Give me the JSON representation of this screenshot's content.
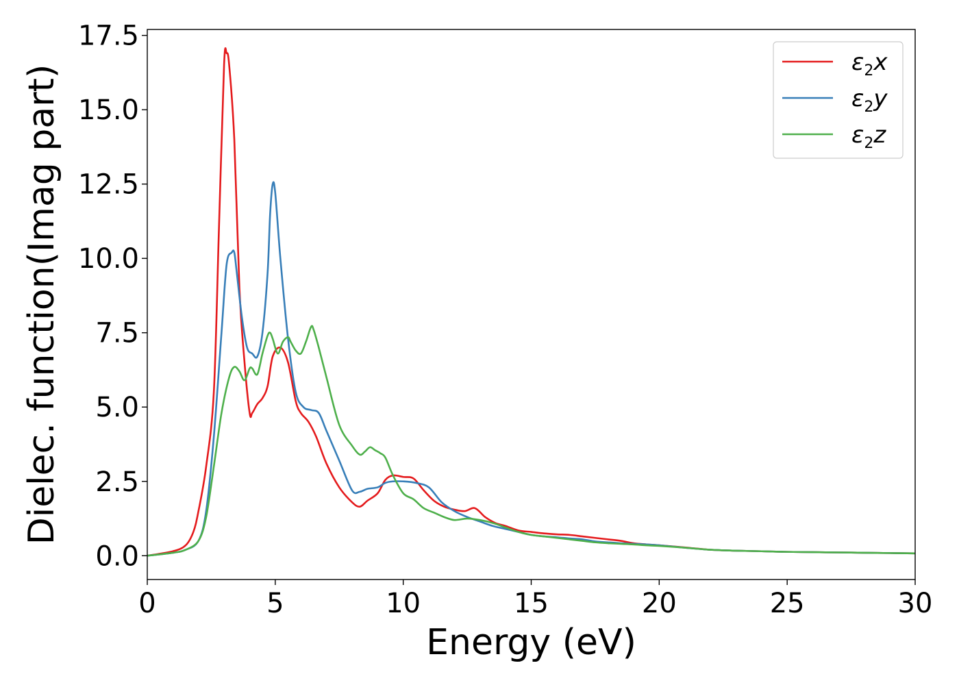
{
  "chart_data": {
    "type": "line",
    "title": "",
    "xlabel": "Energy (eV)",
    "ylabel": "Dielec. function(Imag part)",
    "xlim": [
      0,
      30
    ],
    "ylim": [
      -0.8,
      17.7
    ],
    "xticks": [
      0,
      5,
      10,
      15,
      20,
      25,
      30
    ],
    "xtick_labels": [
      "0",
      "5",
      "10",
      "15",
      "20",
      "25",
      "30"
    ],
    "yticks": [
      0,
      2.5,
      5,
      7.5,
      10,
      12.5,
      15,
      17.5
    ],
    "ytick_labels": [
      "0.0",
      "2.5",
      "5.0",
      "7.5",
      "10.0",
      "12.5",
      "15.0",
      "17.5"
    ],
    "grid": false,
    "legend_position": "top-right",
    "series": [
      {
        "name": "ε2x",
        "symbol": "ε",
        "sub": "2",
        "axis": "x",
        "color": "#e41a1c",
        "x": [
          0,
          1,
          1.5,
          1.8,
          2.0,
          2.3,
          2.6,
          2.8,
          3.0,
          3.1,
          3.2,
          3.4,
          3.6,
          3.8,
          4.0,
          4.1,
          4.3,
          4.5,
          4.7,
          4.9,
          5.2,
          5.5,
          5.8,
          6.0,
          6.3,
          6.6,
          7.0,
          7.5,
          8.0,
          8.3,
          8.6,
          9.0,
          9.3,
          9.6,
          10.0,
          10.4,
          10.8,
          11.2,
          11.6,
          12.0,
          12.4,
          12.8,
          13.2,
          13.6,
          14.0,
          14.5,
          15.0,
          15.5,
          16.0,
          16.5,
          17.0,
          17.5,
          18.0,
          18.5,
          19.0,
          19.5,
          20.0,
          21.0,
          22.0,
          23.0,
          24.0,
          25.0,
          26.0,
          27.0,
          28.0,
          29.0,
          30.0
        ],
        "y": [
          0,
          0.15,
          0.35,
          0.8,
          1.5,
          3.0,
          5.5,
          11.0,
          16.5,
          16.9,
          16.5,
          14.0,
          9.0,
          6.5,
          4.8,
          4.8,
          5.1,
          5.3,
          5.7,
          6.7,
          7.0,
          6.5,
          5.2,
          4.8,
          4.5,
          4.0,
          3.1,
          2.3,
          1.8,
          1.65,
          1.85,
          2.1,
          2.55,
          2.7,
          2.65,
          2.6,
          2.2,
          1.85,
          1.65,
          1.55,
          1.5,
          1.6,
          1.3,
          1.1,
          1.0,
          0.85,
          0.8,
          0.75,
          0.72,
          0.7,
          0.65,
          0.6,
          0.55,
          0.5,
          0.42,
          0.38,
          0.35,
          0.28,
          0.2,
          0.17,
          0.15,
          0.13,
          0.12,
          0.11,
          0.1,
          0.09,
          0.08
        ]
      },
      {
        "name": "ε2y",
        "symbol": "ε",
        "sub": "2",
        "axis": "y",
        "color": "#377eb8",
        "x": [
          0,
          1,
          1.5,
          2.0,
          2.3,
          2.6,
          2.9,
          3.1,
          3.3,
          3.4,
          3.5,
          3.7,
          3.9,
          4.1,
          4.3,
          4.5,
          4.7,
          4.8,
          4.9,
          5.0,
          5.2,
          5.5,
          5.8,
          6.1,
          6.4,
          6.7,
          7.0,
          7.5,
          8.0,
          8.3,
          8.6,
          9.0,
          9.3,
          9.6,
          10.0,
          10.5,
          11.0,
          11.5,
          12.0,
          12.5,
          13.0,
          13.5,
          14.0,
          14.5,
          15.0,
          15.5,
          16.0,
          16.5,
          17.0,
          17.5,
          18.0,
          18.5,
          19.0,
          19.5,
          20.0,
          21.0,
          22.0,
          23.0,
          24.0,
          25.0,
          26.0,
          27.0,
          28.0,
          29.0,
          30.0
        ],
        "y": [
          0,
          0.1,
          0.2,
          0.5,
          1.5,
          4.0,
          7.5,
          9.8,
          10.2,
          10.2,
          9.5,
          8.0,
          7.0,
          6.8,
          6.7,
          7.5,
          9.5,
          11.5,
          12.5,
          12.2,
          10.0,
          7.3,
          5.5,
          5.0,
          4.9,
          4.8,
          4.2,
          3.2,
          2.2,
          2.15,
          2.25,
          2.3,
          2.45,
          2.5,
          2.5,
          2.45,
          2.3,
          1.8,
          1.5,
          1.3,
          1.15,
          1.0,
          0.9,
          0.8,
          0.7,
          0.65,
          0.62,
          0.58,
          0.55,
          0.48,
          0.45,
          0.42,
          0.4,
          0.38,
          0.35,
          0.27,
          0.2,
          0.17,
          0.15,
          0.13,
          0.12,
          0.11,
          0.1,
          0.09,
          0.08
        ]
      },
      {
        "name": "ε2z",
        "symbol": "ε",
        "sub": "2",
        "axis": "z",
        "color": "#4daf4a",
        "x": [
          0,
          1,
          1.5,
          2.0,
          2.3,
          2.6,
          2.9,
          3.2,
          3.4,
          3.6,
          3.8,
          4.0,
          4.1,
          4.3,
          4.5,
          4.7,
          4.8,
          4.9,
          5.1,
          5.3,
          5.5,
          5.6,
          5.8,
          6.0,
          6.2,
          6.4,
          6.5,
          6.7,
          7.0,
          7.5,
          8.0,
          8.3,
          8.5,
          8.7,
          8.9,
          9.1,
          9.3,
          9.6,
          10.0,
          10.4,
          10.8,
          11.2,
          11.6,
          12.0,
          12.5,
          13.0,
          13.5,
          14.0,
          14.5,
          15.0,
          15.5,
          16.0,
          16.5,
          17.0,
          17.5,
          18.0,
          18.5,
          19.0,
          19.5,
          20.0,
          21.0,
          22.0,
          23.0,
          24.0,
          25.0,
          26.0,
          27.0,
          28.0,
          29.0,
          30.0
        ],
        "y": [
          0,
          0.1,
          0.2,
          0.5,
          1.3,
          3.0,
          4.8,
          6.0,
          6.35,
          6.2,
          5.9,
          6.3,
          6.3,
          6.1,
          6.8,
          7.4,
          7.5,
          7.3,
          6.8,
          7.2,
          7.35,
          7.2,
          6.9,
          6.8,
          7.2,
          7.7,
          7.6,
          7.0,
          6.0,
          4.4,
          3.7,
          3.4,
          3.5,
          3.65,
          3.55,
          3.45,
          3.3,
          2.7,
          2.1,
          1.9,
          1.6,
          1.45,
          1.3,
          1.2,
          1.25,
          1.2,
          1.1,
          0.95,
          0.8,
          0.7,
          0.65,
          0.6,
          0.55,
          0.5,
          0.45,
          0.42,
          0.4,
          0.38,
          0.35,
          0.33,
          0.27,
          0.2,
          0.17,
          0.15,
          0.13,
          0.12,
          0.11,
          0.1,
          0.09,
          0.08
        ]
      }
    ]
  }
}
